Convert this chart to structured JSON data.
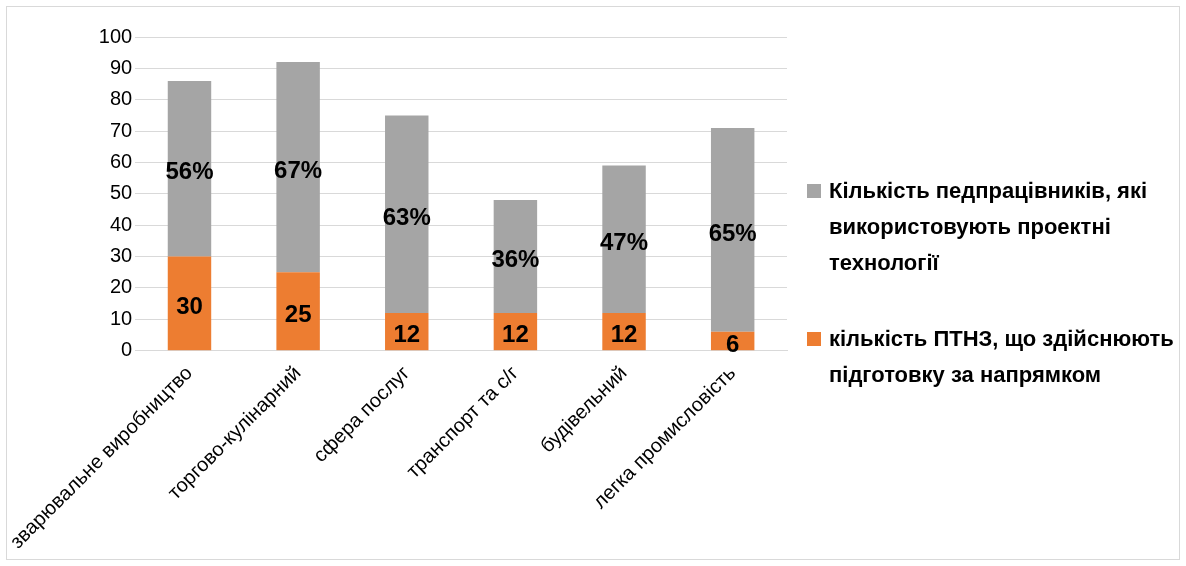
{
  "chart_data": {
    "type": "bar",
    "stacked": true,
    "categories": [
      "зварювальне виробництво",
      "торгово-кулінарний",
      "сфера послуг",
      "транспорт та с/г",
      "будівельний",
      "легка промисловість"
    ],
    "series": [
      {
        "name": "кількість ПТНЗ, що здійснюють підготовку за напрямком",
        "color": "#ed7d31",
        "values": [
          30,
          25,
          12,
          12,
          12,
          6
        ],
        "value_labels": [
          "30",
          "25",
          "12",
          "12",
          "12",
          "6"
        ]
      },
      {
        "name": "Кількість педпрацівників, які використовують проектні технології",
        "color": "#a5a5a5",
        "values": [
          56,
          67,
          63,
          36,
          47,
          65
        ],
        "value_labels": [
          "56%",
          "67%",
          "63%",
          "36%",
          "47%",
          "65%"
        ]
      }
    ],
    "ylim": [
      0,
      100
    ],
    "yticks": [
      0,
      10,
      20,
      30,
      40,
      50,
      60,
      70,
      80,
      90,
      100
    ],
    "grid": "y",
    "legend": "right"
  }
}
